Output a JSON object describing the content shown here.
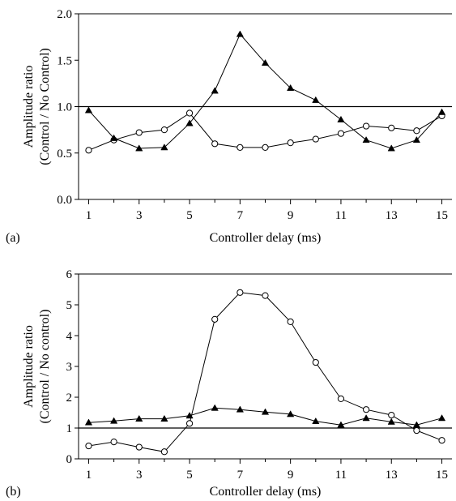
{
  "chart_data": [
    {
      "type": "line",
      "panel_label": "(a)",
      "xlabel": "Controller delay (ms)",
      "ylabel_lines": [
        "Amplitude ratio",
        "(Control / No Control)"
      ],
      "xlim": [
        0.6,
        15.4
      ],
      "ylim": [
        0,
        2.0
      ],
      "xticks": [
        1,
        3,
        5,
        7,
        9,
        11,
        13,
        15
      ],
      "yticks": [
        0.0,
        0.5,
        1.0,
        1.5,
        2.0
      ],
      "ytick_labels": [
        "0.0",
        "0.5",
        "1.0",
        "1.5",
        "2.0"
      ],
      "reference_line": 1.0,
      "series": [
        {
          "marker": "circle-open",
          "x": [
            1,
            2,
            3,
            4,
            5,
            6,
            7,
            8,
            9,
            10,
            11,
            12,
            13,
            14,
            15
          ],
          "y": [
            0.53,
            0.64,
            0.72,
            0.75,
            0.93,
            0.6,
            0.56,
            0.56,
            0.61,
            0.65,
            0.71,
            0.79,
            0.77,
            0.74,
            0.9
          ]
        },
        {
          "marker": "triangle-filled",
          "x": [
            1,
            2,
            3,
            4,
            5,
            6,
            7,
            8,
            9,
            10,
            11,
            12,
            13,
            14,
            15
          ],
          "y": [
            0.96,
            0.66,
            0.55,
            0.56,
            0.82,
            1.17,
            1.78,
            1.47,
            1.2,
            1.07,
            0.86,
            0.64,
            0.55,
            0.64,
            0.94
          ]
        }
      ]
    },
    {
      "type": "line",
      "panel_label": "(b)",
      "xlabel": "Controller delay (ms)",
      "ylabel_lines": [
        "Amplitude ratio",
        "(Control / No control)"
      ],
      "xlim": [
        0.6,
        15.4
      ],
      "ylim": [
        0,
        6
      ],
      "xticks": [
        1,
        3,
        5,
        7,
        9,
        11,
        13,
        15
      ],
      "yticks": [
        0,
        1,
        2,
        3,
        4,
        5,
        6
      ],
      "ytick_labels": [
        "0",
        "1",
        "2",
        "3",
        "4",
        "5",
        "6"
      ],
      "reference_line": 1.0,
      "series": [
        {
          "marker": "circle-open",
          "x": [
            1,
            2,
            3,
            4,
            5,
            6,
            7,
            8,
            9,
            10,
            11,
            12,
            13,
            14,
            15
          ],
          "y": [
            0.42,
            0.55,
            0.38,
            0.23,
            1.15,
            4.53,
            5.4,
            5.3,
            4.45,
            3.13,
            1.95,
            1.6,
            1.42,
            0.92,
            0.6
          ]
        },
        {
          "marker": "triangle-filled",
          "x": [
            1,
            2,
            3,
            4,
            5,
            6,
            7,
            8,
            9,
            10,
            11,
            12,
            13,
            14,
            15
          ],
          "y": [
            1.18,
            1.23,
            1.3,
            1.3,
            1.4,
            1.65,
            1.6,
            1.52,
            1.45,
            1.22,
            1.1,
            1.32,
            1.2,
            1.1,
            1.32
          ]
        }
      ]
    }
  ]
}
